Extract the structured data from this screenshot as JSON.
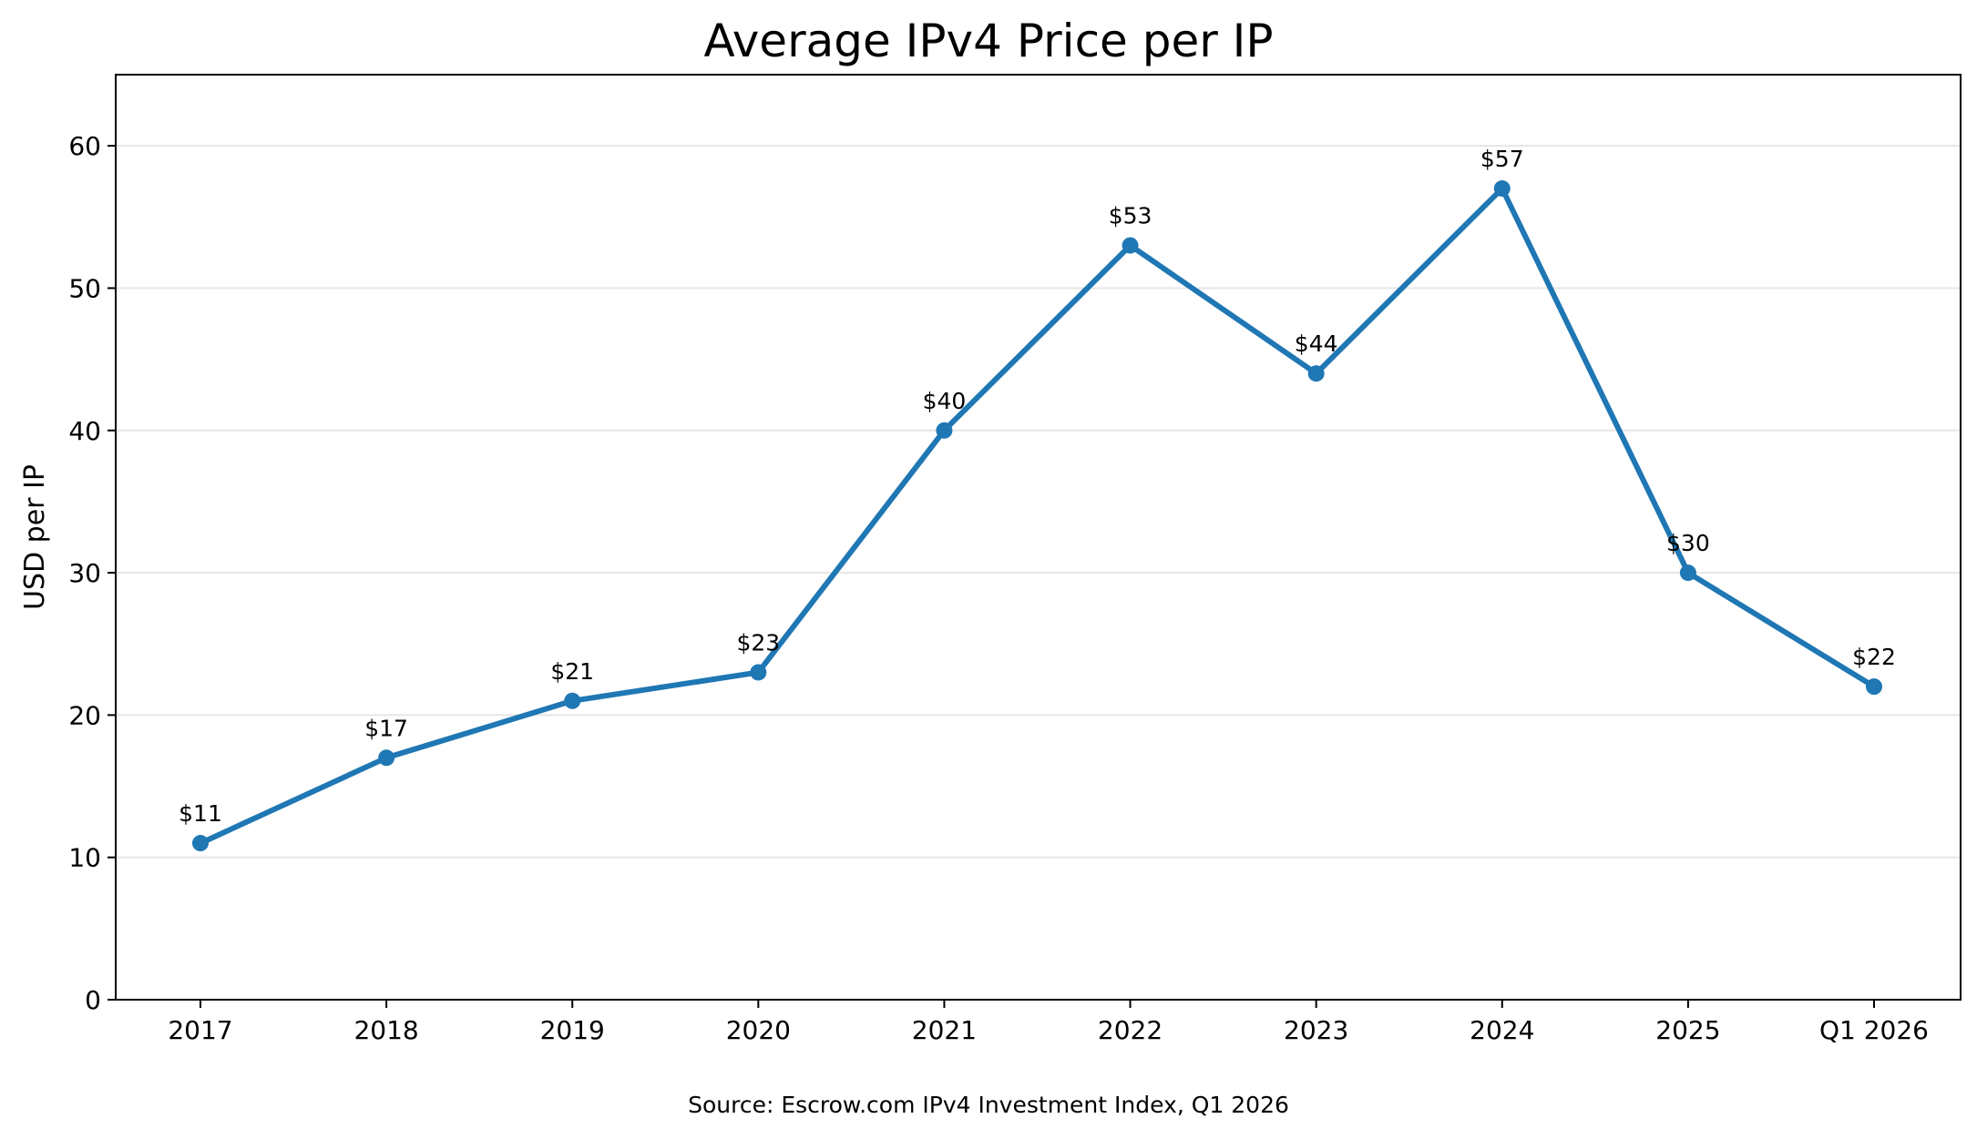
{
  "chart_data": {
    "type": "line",
    "title": "Average IPv4 Price per IP",
    "xlabel": "",
    "ylabel": "USD per IP",
    "categories": [
      "2017",
      "2018",
      "2019",
      "2020",
      "2021",
      "2022",
      "2023",
      "2024",
      "2025",
      "Q1 2026"
    ],
    "series": [
      {
        "values": [
          11,
          17,
          21,
          23,
          40,
          53,
          44,
          57,
          30,
          22
        ],
        "data_labels": [
          "$11",
          "$17",
          "$21",
          "$23",
          "$40",
          "$53",
          "$44",
          "$57",
          "$30",
          "$22"
        ],
        "color": "#1f77b4",
        "marker": "circle"
      }
    ],
    "ylim": [
      0,
      65
    ],
    "yticks": [
      0,
      10,
      20,
      30,
      40,
      50,
      60
    ],
    "grid": "horizontal",
    "grid_color": "#e6e6e6",
    "legend": "none",
    "footnote": "Source: Escrow.com IPv4 Investment Index, Q1 2026"
  }
}
